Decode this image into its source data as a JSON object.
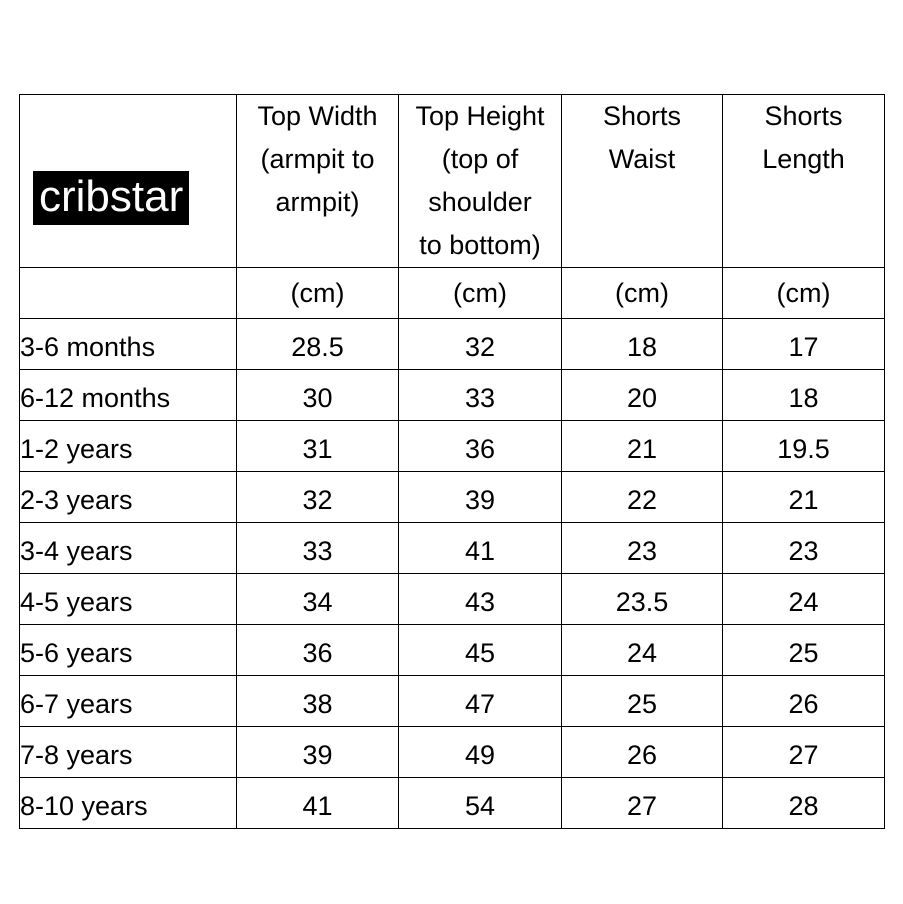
{
  "brand": {
    "logo_text": "cribstar",
    "colors": {
      "logo_bg": "#000000",
      "logo_text": "#ffffff",
      "border": "#000000"
    }
  },
  "table": {
    "headers": [
      [
        "Top Width",
        "(armpit to",
        "armpit)"
      ],
      [
        "Top Height",
        "(top of",
        "shoulder",
        "to bottom)"
      ],
      [
        "Shorts",
        "Waist"
      ],
      [
        "Shorts",
        "Length"
      ]
    ],
    "units": [
      "(cm)",
      "(cm)",
      "(cm)",
      "(cm)"
    ],
    "rows": [
      {
        "size": "3-6 months",
        "values": [
          "28.5",
          "32",
          "18",
          "17"
        ]
      },
      {
        "size": "6-12 months",
        "values": [
          "30",
          "33",
          "20",
          "18"
        ]
      },
      {
        "size": "1-2 years",
        "values": [
          "31",
          "36",
          "21",
          "19.5"
        ]
      },
      {
        "size": "2-3 years",
        "values": [
          "32",
          "39",
          "22",
          "21"
        ]
      },
      {
        "size": "3-4 years",
        "values": [
          "33",
          "41",
          "23",
          "23"
        ]
      },
      {
        "size": "4-5 years",
        "values": [
          "34",
          "43",
          "23.5",
          "24"
        ]
      },
      {
        "size": "5-6 years",
        "values": [
          "36",
          "45",
          "24",
          "25"
        ]
      },
      {
        "size": "6-7 years",
        "values": [
          "38",
          "47",
          "25",
          "26"
        ]
      },
      {
        "size": "7-8 years",
        "values": [
          "39",
          "49",
          "26",
          "27"
        ]
      },
      {
        "size": "8-10 years",
        "values": [
          "41",
          "54",
          "27",
          "28"
        ]
      }
    ]
  }
}
